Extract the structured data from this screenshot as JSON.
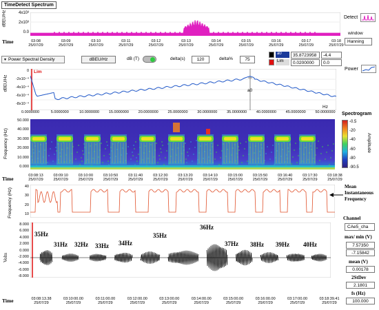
{
  "title": "TimeDetect Spectrum",
  "detect_label": "Detect",
  "window": {
    "label": "window",
    "value": "Hanning"
  },
  "top_plot": {
    "ylabel": "dBEU/Hz",
    "yticks": [
      "4x10³",
      "2x10³",
      "0.0"
    ],
    "time_label": "Time",
    "xticks": [
      {
        "t": "03:08",
        "d": "25/07/29"
      },
      {
        "t": "03:09",
        "d": "25/07/29"
      },
      {
        "t": "03:10",
        "d": "25/07/29"
      },
      {
        "t": "03:11",
        "d": "25/07/29"
      },
      {
        "t": "03:12",
        "d": "25/07/29"
      },
      {
        "t": "03:13",
        "d": "25/07/29"
      },
      {
        "t": "03:14",
        "d": "25/07/29"
      },
      {
        "t": "03:15",
        "d": "25/07/29"
      },
      {
        "t": "03:16",
        "d": "25/07/29"
      },
      {
        "t": "03:17",
        "d": "25/07/29"
      },
      {
        "t": "03:18",
        "d": "25/07/29"
      }
    ]
  },
  "controls": {
    "psd_label": "Power Spectral Density",
    "unit": "dBEU/Hz",
    "db_label": "dB (T)",
    "deltas_label": "delta(s)",
    "deltas_value": "120",
    "deltapct_label": "delta%",
    "deltapct_value": "75",
    "a0_label": "a0",
    "lim_label": "Lim",
    "cursor_x": "35.8723958",
    "cursor_y": "0.0200000",
    "cursor_v1": "-4.4",
    "cursor_v2": "0.0",
    "power_label": "Power"
  },
  "psd_plot": {
    "ylabel": "dBEU/Hz",
    "lim": "Lim",
    "a0": "a0",
    "yticks": [
      "0",
      "-2x10⁻⁴",
      "-4x10⁻⁴",
      "-6x10⁻⁴",
      "-8x10⁻⁴"
    ],
    "xticks": [
      "0.0000000",
      "5.0000000",
      "10.0000000",
      "15.0000000",
      "20.0000000",
      "25.0000000",
      "30.0000000",
      "35.0000000",
      "40.0000000",
      "45.0000000",
      "50.0000000"
    ],
    "xunit": "Hz"
  },
  "spectrogram": {
    "title": "Spectrogram",
    "ylabel": "Frequency (Hz)",
    "yticks": [
      "50.000",
      "40.000",
      "30.000",
      "20.000",
      "10.000",
      "0.000"
    ],
    "colorbar_label": "Amplitude",
    "colorbar_ticks": [
      "-0.5",
      "-20",
      "-40",
      "-60",
      "-80",
      "-90.5"
    ],
    "time_label": "Time",
    "xticks": [
      {
        "t": "03:08:13",
        "d": "25/07/29"
      },
      {
        "t": "03:09:10",
        "d": "25/07/29"
      },
      {
        "t": "03:10:00",
        "d": "25/07/29"
      },
      {
        "t": "03:10:50",
        "d": "25/07/29"
      },
      {
        "t": "03:11:40",
        "d": "25/07/29"
      },
      {
        "t": "03:12:30",
        "d": "25/07/29"
      },
      {
        "t": "03:13:20",
        "d": "25/07/29"
      },
      {
        "t": "03:14:10",
        "d": "25/07/29"
      },
      {
        "t": "03:15:00",
        "d": "25/07/29"
      },
      {
        "t": "03:15:50",
        "d": "25/07/29"
      },
      {
        "t": "03:16:40",
        "d": "25/07/29"
      },
      {
        "t": "03:17:30",
        "d": "25/07/29"
      },
      {
        "t": "03:18:38",
        "d": "25/07/29"
      }
    ]
  },
  "freq_plot": {
    "ylabel": "Frequency (Hz)",
    "yticks": [
      "40",
      "30",
      "20",
      "10"
    ],
    "annotation": "Mean Instantaneous Frequency"
  },
  "volt_plot": {
    "ylabel": "Volts",
    "yticks": [
      "8.000",
      "6.000",
      "4.000",
      "2.000",
      "0.000",
      "-2.000",
      "-4.000",
      "-6.000",
      "-8.000"
    ],
    "time_label": "Time",
    "xticks": [
      {
        "t": "03:08:13.38",
        "d": "25/07/29"
      },
      {
        "t": "03:10:00.00",
        "d": "25/07/29"
      },
      {
        "t": "03:11:00.00",
        "d": "25/07/29"
      },
      {
        "t": "03:12:00.00",
        "d": "25/07/29"
      },
      {
        "t": "03:13:00.00",
        "d": "25/07/29"
      },
      {
        "t": "03:14:00.00",
        "d": "25/07/29"
      },
      {
        "t": "03:15:00.00",
        "d": "25/07/29"
      },
      {
        "t": "03:16:00.00",
        "d": "25/07/29"
      },
      {
        "t": "03:17:00.00",
        "d": "25/07/29"
      },
      {
        "t": "03:18:39.41",
        "d": "25/07/29"
      }
    ],
    "freq_labels": [
      "35Hz",
      "31Hz",
      "32Hz",
      "33Hz",
      "34Hz",
      "35Hz",
      "36Hz",
      "37Hz",
      "38Hz",
      "39Hz",
      "40Hz"
    ]
  },
  "stats": {
    "channel_label": "Channel",
    "channel_value": "CAe5_cha",
    "maxmin_label": "max/ min (V)",
    "max_value": "7.57350",
    "min_value": "-7.15842",
    "mean_label": "mean (V)",
    "mean_value": "0.00178",
    "stdev_label": "2StDev",
    "stdev_value": "2.1801",
    "fs_label": "fs (Hz)",
    "fs_value": "100.000"
  },
  "colors": {
    "magenta": "#e020c0",
    "psd_blue": "#1f57c8",
    "freq_red": "#e0502a",
    "lim_red": "#e01010"
  }
}
